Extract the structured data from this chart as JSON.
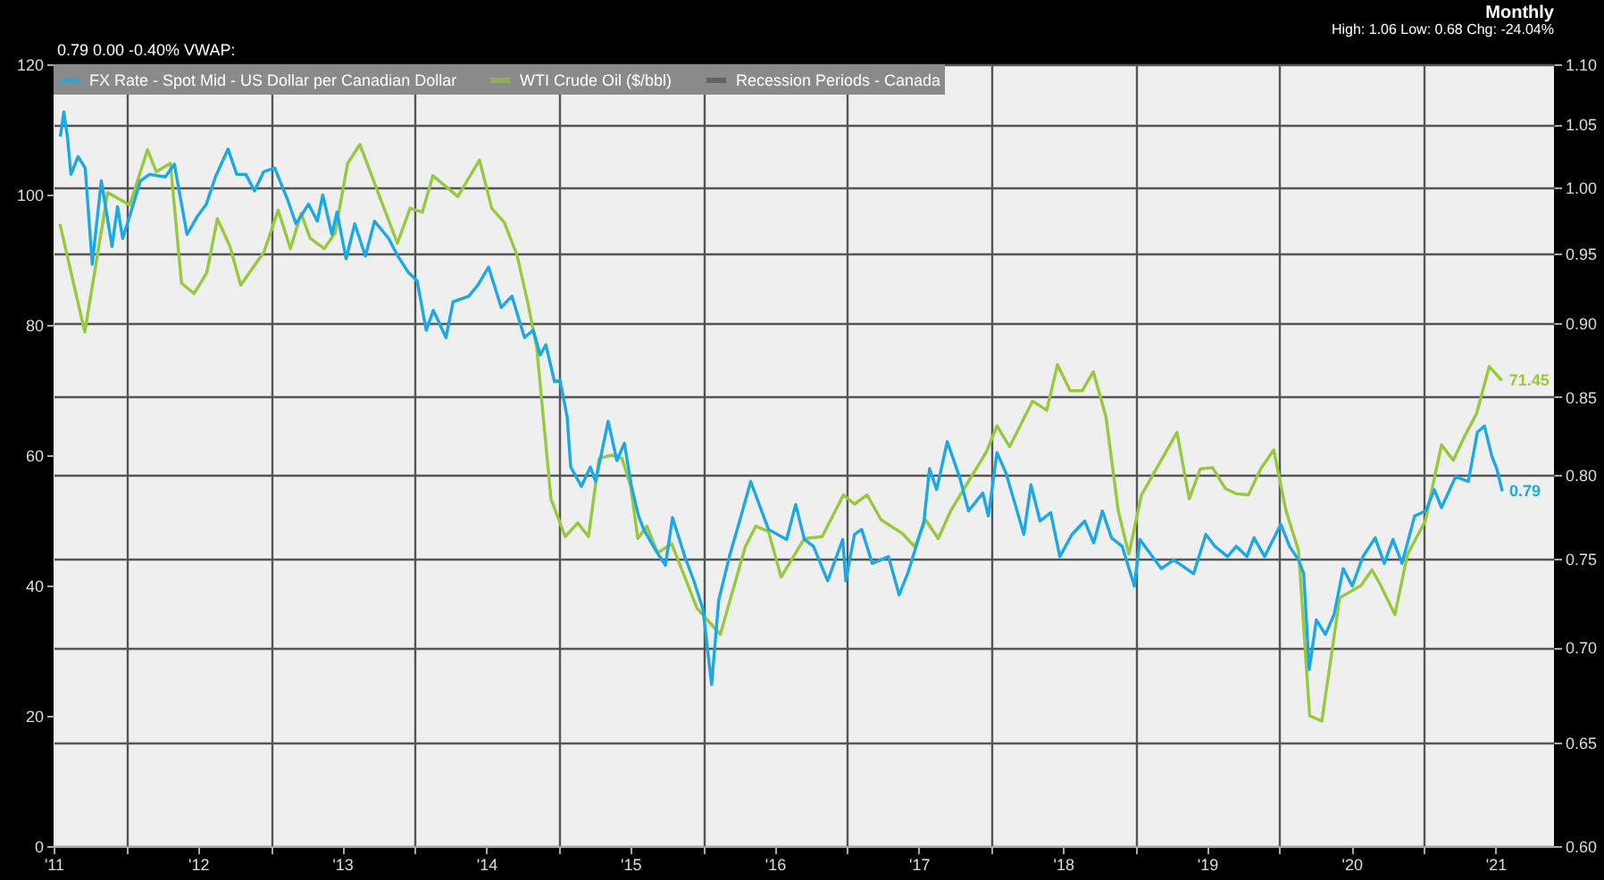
{
  "chart_data": {
    "type": "line",
    "title": "Monthly",
    "subtitle": "High: 1.06 Low: 0.68 Chg: -24.04%",
    "annotations": [
      "0.79 0.00 -0.40%  VWAP:"
    ],
    "xlim": [
      "2011-07-01",
      "2021-11-26"
    ],
    "xticks": [
      {
        "value": "2011-07-01",
        "label": "'11"
      },
      {
        "value": "2012-01-01",
        "label": null
      },
      {
        "value": "2012-07-01",
        "label": "'12"
      },
      {
        "value": "2013-01-01",
        "label": null
      },
      {
        "value": "2013-07-01",
        "label": "'13"
      },
      {
        "value": "2014-01-01",
        "label": null
      },
      {
        "value": "2014-07-01",
        "label": "'14"
      },
      {
        "value": "2015-01-01",
        "label": null
      },
      {
        "value": "2015-07-01",
        "label": "'15"
      },
      {
        "value": "2016-01-01",
        "label": null
      },
      {
        "value": "2016-07-01",
        "label": "'16"
      },
      {
        "value": "2017-01-01",
        "label": null
      },
      {
        "value": "2017-07-01",
        "label": "'17"
      },
      {
        "value": "2018-01-01",
        "label": null
      },
      {
        "value": "2018-07-01",
        "label": "'18"
      },
      {
        "value": "2019-01-01",
        "label": null
      },
      {
        "value": "2019-07-01",
        "label": "'19"
      },
      {
        "value": "2020-01-01",
        "label": null
      },
      {
        "value": "2020-07-01",
        "label": "'20"
      },
      {
        "value": "2021-01-01",
        "label": null
      },
      {
        "value": "2021-07-01",
        "label": "'21"
      }
    ],
    "ylim": [
      0,
      120
    ],
    "yticks": [
      0,
      20,
      40,
      60,
      80,
      100,
      120
    ],
    "y2lim": [
      0.6,
      1.1
    ],
    "y2ticks": [
      {
        "value": 0.6,
        "label": "0.60"
      },
      {
        "value": 0.65,
        "label": "0.65"
      },
      {
        "value": 0.7,
        "label": "0.70"
      },
      {
        "value": 0.75,
        "label": "0.75"
      },
      {
        "value": 0.8,
        "label": "0.80"
      },
      {
        "value": 0.85,
        "label": "0.85"
      },
      {
        "value": 0.9,
        "label": "0.90"
      },
      {
        "value": 0.95,
        "label": "0.95"
      },
      {
        "value": 1.0,
        "label": "1.00"
      },
      {
        "value": 1.05,
        "label": "1.05"
      },
      {
        "value": 1.1,
        "label": "1.10"
      }
    ],
    "log": "y2",
    "grid": true,
    "legend": "top left",
    "series": [
      {
        "name": "FX Rate - Spot Mid - US Dollar per Canadian Dollar",
        "axis": "y2",
        "color": "#1ba8e6",
        "x": [
          "2011-07-18",
          "2011-07-27",
          "2011-08-05",
          "2011-08-14",
          "2011-09-01",
          "2011-09-19",
          "2011-10-07",
          "2011-10-30",
          "2011-11-26",
          "2011-12-10",
          "2011-12-23",
          "2012-01-10",
          "2012-02-06",
          "2012-02-29",
          "2012-04-09",
          "2012-05-02",
          "2012-06-03",
          "2012-06-30",
          "2012-07-22",
          "2012-08-14",
          "2012-09-15",
          "2012-10-07",
          "2012-10-30",
          "2012-11-21",
          "2012-12-14",
          "2013-01-11",
          "2013-02-12",
          "2013-03-06",
          "2013-04-07",
          "2013-04-29",
          "2013-05-13",
          "2013-06-05",
          "2013-06-18",
          "2013-07-11",
          "2013-08-02",
          "2013-08-29",
          "2013-09-21",
          "2013-10-27",
          "2013-11-19",
          "2013-12-16",
          "2014-01-07",
          "2014-01-30",
          "2014-02-17",
          "2014-03-21",
          "2014-04-08",
          "2014-05-18",
          "2014-06-10",
          "2014-07-07",
          "2014-08-08",
          "2014-09-04",
          "2014-10-06",
          "2014-10-28",
          "2014-11-15",
          "2014-11-29",
          "2014-12-21",
          "2015-01-04",
          "2015-01-22",
          "2015-01-31",
          "2015-02-27",
          "2015-03-22",
          "2015-04-04",
          "2015-05-06",
          "2015-05-28",
          "2015-06-16",
          "2015-07-04",
          "2015-07-22",
          "2015-08-04",
          "2015-09-05",
          "2015-09-28",
          "2015-10-16",
          "2015-11-16",
          "2015-12-09",
          "2016-01-01",
          "2016-01-23",
          "2016-02-10",
          "2016-03-08",
          "2016-04-09",
          "2016-05-01",
          "2016-06-15",
          "2016-07-31",
          "2016-08-23",
          "2016-09-14",
          "2016-10-07",
          "2016-11-12",
          "2016-12-20",
          "2016-12-28",
          "2017-01-19",
          "2017-02-06",
          "2017-03-05",
          "2017-04-15",
          "2017-05-12",
          "2017-06-04",
          "2017-07-14",
          "2017-07-28",
          "2017-08-15",
          "2017-09-11",
          "2017-10-13",
          "2017-11-04",
          "2017-12-10",
          "2017-12-24",
          "2018-01-15",
          "2018-02-07",
          "2018-03-02",
          "2018-03-24",
          "2018-04-11",
          "2018-05-04",
          "2018-05-31",
          "2018-06-23",
          "2018-07-24",
          "2018-08-25",
          "2018-09-17",
          "2018-10-09",
          "2018-11-01",
          "2018-11-28",
          "2018-12-29",
          "2019-01-12",
          "2019-02-03",
          "2019-03-07",
          "2019-04-08",
          "2019-05-28",
          "2019-06-28",
          "2019-07-21",
          "2019-08-22",
          "2019-09-13",
          "2019-10-10",
          "2019-10-28",
          "2019-11-24",
          "2020-01-04",
          "2020-01-26",
          "2020-02-18",
          "2020-03-02",
          "2020-03-16",
          "2020-04-03",
          "2020-04-26",
          "2020-05-18",
          "2020-06-10",
          "2020-07-03",
          "2020-07-30",
          "2020-08-30",
          "2020-09-22",
          "2020-10-14",
          "2020-11-06",
          "2020-12-08",
          "2021-01-05",
          "2021-01-27",
          "2021-02-14",
          "2021-03-22",
          "2021-04-23",
          "2021-05-16",
          "2021-06-03",
          "2021-06-21",
          "2021-07-04",
          "2021-07-18"
        ],
        "values": [
          1.04,
          1.06,
          1.04,
          1.01,
          1.024,
          1.015,
          0.942,
          1.005,
          0.955,
          0.985,
          0.961,
          0.978,
          1.005,
          1.01,
          1.008,
          1.018,
          0.964,
          0.978,
          0.987,
          1.008,
          1.03,
          1.01,
          1.01,
          0.997,
          1.012,
          1.015,
          0.991,
          0.972,
          0.987,
          0.974,
          0.994,
          0.964,
          0.981,
          0.946,
          0.972,
          0.948,
          0.974,
          0.961,
          0.948,
          0.936,
          0.93,
          0.895,
          0.909,
          0.89,
          0.915,
          0.919,
          0.927,
          0.94,
          0.911,
          0.919,
          0.89,
          0.895,
          0.878,
          0.885,
          0.86,
          0.861,
          0.837,
          0.805,
          0.793,
          0.805,
          0.796,
          0.834,
          0.809,
          0.82,
          0.793,
          0.775,
          0.767,
          0.754,
          0.746,
          0.774,
          0.751,
          0.737,
          0.721,
          0.68,
          0.726,
          0.751,
          0.777,
          0.796,
          0.767,
          0.761,
          0.782,
          0.761,
          0.757,
          0.737,
          0.761,
          0.737,
          0.764,
          0.767,
          0.747,
          0.751,
          0.729,
          0.742,
          0.772,
          0.804,
          0.791,
          0.821,
          0.798,
          0.778,
          0.789,
          0.775,
          0.814,
          0.801,
          0.782,
          0.764,
          0.794,
          0.772,
          0.777,
          0.751,
          0.764,
          0.772,
          0.759,
          0.778,
          0.762,
          0.757,
          0.734,
          0.761,
          0.754,
          0.744,
          0.749,
          0.741,
          0.764,
          0.757,
          0.751,
          0.757,
          0.751,
          0.762,
          0.751,
          0.77,
          0.757,
          0.749,
          0.741,
          0.688,
          0.715,
          0.707,
          0.718,
          0.744,
          0.734,
          0.751,
          0.762,
          0.747,
          0.761,
          0.747,
          0.775,
          0.778,
          0.791,
          0.78,
          0.799,
          0.796,
          0.827,
          0.831,
          0.812,
          0.804,
          0.79
        ],
        "value_labels": [
          null,
          null,
          null,
          null,
          null,
          null,
          null,
          null,
          null,
          null,
          null,
          null,
          null,
          null,
          null,
          null,
          null,
          null,
          null,
          null,
          null,
          null,
          null,
          null,
          null,
          null,
          null,
          null,
          null,
          null,
          null,
          null,
          null,
          null,
          null,
          null,
          null,
          null,
          null,
          null,
          null,
          null,
          null,
          null,
          null,
          null,
          null,
          null,
          null,
          null,
          null,
          null,
          null,
          null,
          null,
          null,
          null,
          null,
          null,
          null,
          null,
          null,
          null,
          null,
          null,
          null,
          null,
          null,
          null,
          null,
          null,
          null,
          null,
          null,
          null,
          null,
          null,
          null,
          null,
          null,
          null,
          null,
          null,
          null,
          null,
          null,
          null,
          null,
          null,
          null,
          null,
          null,
          null,
          null,
          null,
          null,
          null,
          null,
          null,
          null,
          null,
          null,
          null,
          null,
          null,
          null,
          null,
          null,
          null,
          null,
          null,
          null,
          null,
          null,
          null,
          null,
          null,
          null,
          null,
          null,
          null,
          null,
          null,
          null,
          null,
          null,
          null,
          null,
          null,
          null,
          null,
          null,
          null,
          null,
          null,
          null,
          null,
          null,
          null,
          null,
          null,
          null,
          null,
          null,
          null,
          null,
          null,
          null,
          null,
          null,
          null,
          null,
          "0.79"
        ]
      },
      {
        "name": "WTI Crude Oil ($/bbl)",
        "axis": "y",
        "color": "#97c93c",
        "x": [
          "2011-07-17",
          "2011-09-18",
          "2011-11-15",
          "2012-01-10",
          "2012-02-24",
          "2012-03-17",
          "2012-04-22",
          "2012-05-20",
          "2012-06-21",
          "2012-07-23",
          "2012-08-19",
          "2012-09-20",
          "2012-10-17",
          "2012-12-15",
          "2013-01-20",
          "2013-02-20",
          "2013-03-19",
          "2013-04-11",
          "2013-05-17",
          "2013-06-13",
          "2013-07-15",
          "2013-08-15",
          "2013-10-27",
          "2013-11-18",
          "2013-12-20",
          "2014-01-20",
          "2014-02-16",
          "2014-04-20",
          "2014-06-14",
          "2014-07-15",
          "2014-08-16",
          "2014-09-17",
          "2014-10-14",
          "2014-11-06",
          "2014-12-12",
          "2015-01-17",
          "2015-02-18",
          "2015-03-17",
          "2015-04-13",
          "2015-05-14",
          "2015-06-10",
          "2015-07-02",
          "2015-07-20",
          "2015-08-12",
          "2015-09-08",
          "2015-10-14",
          "2015-12-17",
          "2016-02-14",
          "2016-04-17",
          "2016-05-14",
          "2016-06-15",
          "2016-07-17",
          "2016-09-14",
          "2016-10-29",
          "2016-12-22",
          "2017-01-19",
          "2017-02-20",
          "2017-03-27",
          "2017-05-20",
          "2017-06-21",
          "2017-07-18",
          "2017-08-19",
          "2017-09-20",
          "2017-12-19",
          "2018-01-15",
          "2018-02-16",
          "2018-04-15",
          "2018-05-21",
          "2018-06-17",
          "2018-07-19",
          "2018-08-19",
          "2018-09-16",
          "2018-10-18",
          "2018-11-18",
          "2018-12-15",
          "2019-01-16",
          "2019-02-17",
          "2019-04-16",
          "2019-05-17",
          "2019-06-14",
          "2019-07-15",
          "2019-08-16",
          "2019-09-12",
          "2019-10-14",
          "2019-11-14",
          "2019-12-17",
          "2020-01-17",
          "2020-02-18",
          "2020-03-17",
          "2020-04-17",
          "2020-06-01",
          "2020-07-25",
          "2020-08-22",
          "2020-09-13",
          "2020-10-19",
          "2020-11-20",
          "2021-01-04",
          "2021-02-14",
          "2021-03-16",
          "2021-04-12",
          "2021-05-14",
          "2021-06-15",
          "2021-07-17"
        ],
        "values": [
          95.5,
          78.9,
          100.3,
          98.4,
          106.9,
          103.5,
          104.8,
          86.4,
          84.8,
          88,
          96.3,
          92,
          86.1,
          91.2,
          97.6,
          91.7,
          97.1,
          93.3,
          91.7,
          94.1,
          104.8,
          107.7,
          96,
          92.5,
          97.9,
          97.3,
          102.9,
          99.7,
          105.3,
          97.9,
          95.7,
          90.7,
          83.5,
          76.5,
          53.3,
          47.5,
          49.6,
          47.5,
          59.5,
          60,
          59.5,
          55.2,
          47.2,
          49.1,
          45,
          46.4,
          36.5,
          32.5,
          45.9,
          49.1,
          48.3,
          41.3,
          47.2,
          47.5,
          53.9,
          52.5,
          53.9,
          50.1,
          48,
          45.9,
          50.1,
          47.2,
          51.5,
          60.5,
          64.5,
          61.3,
          68.3,
          66.9,
          73.9,
          69.9,
          69.9,
          72.8,
          65.9,
          51.5,
          44.8,
          53.9,
          57.3,
          63.5,
          53.3,
          57.9,
          58.1,
          54.9,
          54.1,
          53.9,
          57.9,
          60.8,
          51.5,
          45.3,
          20,
          19.2,
          38.1,
          40,
          42.4,
          40,
          35.5,
          44.8,
          49.9,
          61.6,
          59.2,
          62.7,
          66.4,
          73.6,
          71.45
        ],
        "value_labels": [
          null,
          null,
          null,
          null,
          null,
          null,
          null,
          null,
          null,
          null,
          null,
          null,
          null,
          null,
          null,
          null,
          null,
          null,
          null,
          null,
          null,
          null,
          null,
          null,
          null,
          null,
          null,
          null,
          null,
          null,
          null,
          null,
          null,
          null,
          null,
          null,
          null,
          null,
          null,
          null,
          null,
          null,
          null,
          null,
          null,
          null,
          null,
          null,
          null,
          null,
          null,
          null,
          null,
          null,
          null,
          null,
          null,
          null,
          null,
          null,
          null,
          null,
          null,
          null,
          null,
          null,
          null,
          null,
          null,
          null,
          null,
          null,
          null,
          null,
          null,
          null,
          null,
          null,
          null,
          null,
          null,
          null,
          null,
          null,
          null,
          null,
          null,
          null,
          null,
          null,
          null,
          null,
          null,
          null,
          null,
          null,
          null,
          null,
          null,
          null,
          null,
          null,
          "71.45"
        ]
      },
      {
        "name": "Recession Periods - Canada",
        "type": "area",
        "axis": "y",
        "color": "#4a4a4a"
      }
    ]
  }
}
